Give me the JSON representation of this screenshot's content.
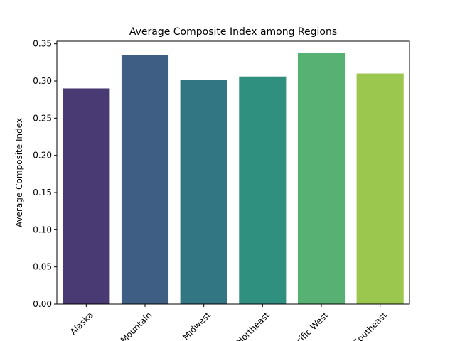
{
  "chart_data": {
    "type": "bar",
    "title": "Average Composite Index among Regions",
    "xlabel": "",
    "ylabel": "Average Composite Index",
    "categories": [
      "Alaska",
      "Mountain",
      "Midwest",
      "Northeast",
      "Pacific West",
      "Southeast"
    ],
    "values": [
      0.29,
      0.335,
      0.301,
      0.306,
      0.338,
      0.31
    ],
    "colors": [
      "#4a3a74",
      "#3f5e84",
      "#327583",
      "#2f9080",
      "#57b172",
      "#9bc74f"
    ],
    "ylim": [
      0,
      0.3535
    ],
    "yticks": [
      0.0,
      0.05,
      0.1,
      0.15,
      0.2,
      0.25,
      0.3,
      0.35
    ],
    "ytick_labels": [
      "0.00",
      "0.05",
      "0.10",
      "0.15",
      "0.20",
      "0.25",
      "0.30",
      "0.35"
    ],
    "grid": false,
    "legend": "none",
    "xtick_rotation": 45
  }
}
